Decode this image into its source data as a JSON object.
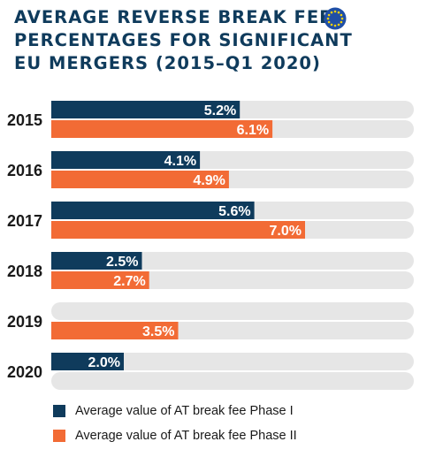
{
  "title_lines": [
    "AVERAGE REVERSE BREAK FEE",
    "PERCENTAGES FOR SIGNIFICANT",
    "EU MERGERS (2015–Q1 2020)"
  ],
  "colors": {
    "phase1": "#0f3b5c",
    "phase2": "#f26b35",
    "track": "#e6e6e6",
    "flag_blue": "#1f4fa6",
    "flag_star": "#f5d10a"
  },
  "icons": {
    "flag": "eu-flag-icon"
  },
  "chart_data": {
    "type": "bar",
    "orientation": "horizontal",
    "categories": [
      "2015",
      "2016",
      "2017",
      "2018",
      "2019",
      "2020"
    ],
    "series": [
      {
        "name": "Average value of AT break fee Phase I",
        "values": [
          5.2,
          4.1,
          5.6,
          2.5,
          null,
          2.0
        ],
        "labels": [
          "5.2%",
          "4.1%",
          "5.6%",
          "2.5%",
          "",
          "2.0%"
        ]
      },
      {
        "name": "Average value of AT break fee Phase II",
        "values": [
          6.1,
          4.9,
          7.0,
          2.7,
          3.5,
          null
        ],
        "labels": [
          "6.1%",
          "4.9%",
          "7.0%",
          "2.7%",
          "3.5%",
          ""
        ]
      }
    ],
    "xlim": [
      0,
      10
    ],
    "grid": false,
    "legend_position": "bottom-left"
  }
}
